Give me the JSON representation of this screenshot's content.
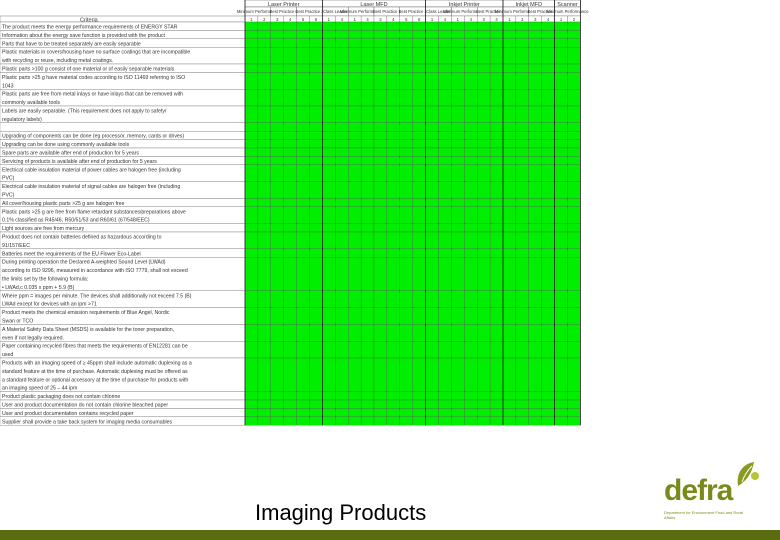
{
  "groups": [
    {
      "label": "Laser Printer",
      "cols": [
        {
          "name": "Minimum Performance",
          "nums": [
            "1",
            "2"
          ]
        },
        {
          "name": "Best Practice 1",
          "nums": [
            "3",
            "4"
          ]
        },
        {
          "name": "Best Practice 2",
          "nums": [
            "5",
            "6"
          ]
        }
      ]
    },
    {
      "label": "Laser MFD",
      "cols": [
        {
          "name": "Class Leader",
          "nums": [
            "1",
            "4"
          ]
        },
        {
          "name": "Minimum Performance",
          "nums": [
            "1",
            "4"
          ]
        },
        {
          "name": "Best Practice 1",
          "nums": [
            "3",
            "4"
          ]
        },
        {
          "name": "Best Practice 2",
          "nums": [
            "5",
            "6"
          ]
        }
      ]
    },
    {
      "label": "Inkjet Printer",
      "cols": [
        {
          "name": "Class Leader",
          "nums": [
            "1",
            "4"
          ]
        },
        {
          "name": "Minimum Performance",
          "nums": [
            "1",
            "4"
          ]
        },
        {
          "name": "Best Practice 1",
          "nums": [
            "3",
            "4"
          ]
        }
      ]
    },
    {
      "label": "Inkjet MFD",
      "cols": [
        {
          "name": "Minimum Performance",
          "nums": [
            "1",
            "2"
          ]
        },
        {
          "name": "Best Practice 1",
          "nums": [
            "3",
            "4"
          ]
        }
      ]
    },
    {
      "label": "Scanner",
      "cols": [
        {
          "name": "Minimum Performance",
          "nums": [
            "1",
            "2"
          ]
        }
      ]
    }
  ],
  "criteria_header": "Criteria",
  "criteria": [
    {
      "text": [
        "The product meets the energy performance requirements of ENERGY STAR"
      ],
      "p": "GGGGGGGGGGGGGGGGGGGGGGGGGGGGGGGGGGGGGGGGG"
    },
    {
      "text": [
        "Information about the energy save function is provided with the product"
      ],
      "p": "GGGGGGGGGGGGGGGGGGGGGGGGGGGGGGGGGGGGGGGGG"
    },
    {
      "text": [
        "Parts that have to be treated separately are easily separable"
      ],
      "p": "GGGGGGGGGGGGGGGGGGGGGGGGGGGGGGGGGGGGGGGGG"
    },
    {
      "text": [
        "Plastic materials in covers/housing have no surface coatings that are incompatible",
        "with recycling or reuse, including metal coatings."
      ],
      "p": "GGGGGGGGGGGGGGGGGGGGGGGGGGGGGGGGGGGGGGGGG"
    },
    {
      "text": [
        "Plastic parts >100 g consist of one material or of easily separable materials"
      ],
      "p": "GGGGGGGGGGGGGGGGGGGGGGGGGGGGGGGGGGGGGGGGG"
    },
    {
      "text": [
        "Plastic parts >25 g have material codes according to ISO 11469 referring to ISO",
        "1043"
      ],
      "p": "GGGGGGGGGGGGGGGGGGGGGGGGGGGGGGGGGGGGGGGGG"
    },
    {
      "text": [
        "Plastic parts are free from metal inlays or have inlays that can be removed with",
        "commonly available tools"
      ],
      "p": "GGGGGGGGGGGGGGGGGGGGGGGGGGGGGGGGGGGGGGGGG"
    },
    {
      "text": [
        "Labels are easily separable. (This requirement does not apply to safety/",
        "regulatory labels)"
      ],
      "p": "GGGGGGGGGGGGGGGGGGGGGGGGGGGGGGGGGGGGGGGGG"
    },
    {
      "text": [
        ""
      ],
      "p": "GGGGGGGGGGGGGGGGGGGGGGGGGGGGGGGGGGGGGGGGG"
    },
    {
      "text": [
        "Upgrading of components can be done (eg processor, memory, cards or drives)"
      ],
      "p": "GGGGGGGGGGGGGGGGGGGGGGGGGGGGGGGGGGGGGGGGG"
    },
    {
      "text": [
        "Upgrading can be done using commonly available tools"
      ],
      "p": "GGGGGGGGGGGGGGGGGGGGGGGGGGGGGGGGGGGGGGGGG"
    },
    {
      "text": [
        "Spare parts are available after end of production for 5 years"
      ],
      "p": "GGGGGGGGGGGGGGGGGGGGGGGGGGGGGGGGGGGGGGGGG"
    },
    {
      "text": [
        "Servicing of products is available after end of production for 5 years"
      ],
      "p": "GGGGGGGGGGGGGGGGGGGGGGGGGGGGGGGGGGGGGGGGG"
    },
    {
      "text": [
        "Electrical cable insulation material of power cables are halogen free (including",
        "PVC)"
      ],
      "p": "GGGGGGGGGGGGGGGGGGGGGGGGGGGGGGGGGGGGGGGGG"
    },
    {
      "text": [
        "Electrical cable insulation material of signal cables are halogen free (including",
        "PVC)"
      ],
      "p": "GGGGGGGGGGGGGGGGGGGGGGGGGGGGGGGGGGGGGGGGG"
    },
    {
      "text": [
        "All cover/housing plastic parts >25 g are halogen free"
      ],
      "p": "GGGGGGGGGGGGGGGGGGGGGGGGGGGGGGGGGGGGGGGGG"
    },
    {
      "text": [
        "Plastic parts >25 g are free from flame retardant substances/preparations above",
        "0.1% classified as R45/46, R50/51/53 and R60/61 (67/548/EEC)"
      ],
      "p": "GGGGGGGGGGGGGGGGGGGGGGGGGGGGGGGGGGGGGGGGG"
    },
    {
      "text": [
        "Light sources are free from mercury"
      ],
      "p": "GGGGGGGGGGGGGGGGGGGGGGGGGGGGGGGGGGGGGGGGG"
    },
    {
      "text": [
        "Product does not contain batteries defined as hazardous according to",
        "91/157/EEC"
      ],
      "p": "GGGGGGGGGGGGGGGGGGGGGGGGGGGGGGGGGGGGGGGGG"
    },
    {
      "text": [
        "Batteries meet the requirements of the EU Flower Eco-Label"
      ],
      "p": "GGGGGGGGGGGGGGGGGGGGGGGGGGGGGGGGGGGGGGGGG"
    },
    {
      "text": [
        "During printing operation the Declared A-weighted Sound Level (LWAd)",
        "according to ISO 9296, measured in accordance with ISO 7779, shall not exceed",
        "the limits set by the following formula:",
        "• LWAd,c 0.035 x ppm + 5.9 (B)"
      ],
      "p": "GGGGGGGGGGGGGGGGGGGGGGGGGGGGGGGGGGGGGGGGG"
    },
    {
      "text": [
        "Where ppm = images per minute. The devices shall additionally not exceed 7.5 (B)",
        "LWAd except for devices with an ipm >71"
      ],
      "p": "GGGGGGGGGGGGGGGGGGGGGGGGGGGGGGGGGGGGGGGGG"
    },
    {
      "text": [
        "Product meets the chemical emission requirements of Blue Angel, Nordic",
        "Swan or TCO"
      ],
      "p": "GGGGGGGGGGGGGGGGGGGGGGGGGGGGGGGGGGGGGGGGG"
    },
    {
      "text": [
        "A Material Safety Data Sheet (MSDS) is available for the toner preparation,",
        "even if not legally required."
      ],
      "p": "GGGGGGGGGGGGGGGGGGGGGGGGGGGGGGGGGGGGGGGGG"
    },
    {
      "text": [
        "Paper containing recycled fibres that meets the requirements of EN12281 can be",
        "used"
      ],
      "p": "GGGGGGGGGGGGGGGGGGGGGGGGGGGGGGGGGGGGGGGGG"
    },
    {
      "text": [
        "Products with an imaging speed of ≥ 45ppm shall include automatic duplexing as a",
        "standard feature at the time of purchase. Automatic duplexing must be offered as",
        "a standard feature or optional accessory at the time of purchase for products with",
        "an imaging speed of 25 – 44 ipm"
      ],
      "p": "GGGGGGGGGGGGGGGGGGGGGGGGGGGGGGGGGGGGGGGGG"
    },
    {
      "text": [
        "Product plastic packaging does not contain chlorine"
      ],
      "p": "GGGGGGGGGGGGGGGGGGGGGGGGGGGGGGGGGGGGGGGGG"
    },
    {
      "text": [
        "User and product documentation do not contain chlorine bleached paper"
      ],
      "p": "GGGGGGGGGGGGGGGGGGGGGGGGGGGGGGGGGGGGGGGGG"
    },
    {
      "text": [
        "User and product documentation contains recycled paper"
      ],
      "p": "GGGGGGGGGGGGGGGGGGGGGGGGGGGGGGGGGGGGGGGGG"
    },
    {
      "text": [
        "Supplier shall provide a take back system for imaging media consumables"
      ],
      "p": "GGGGGGGGGGGGGGGGGGGGGGGGGGGGGGGGGGGGGGGGG"
    }
  ],
  "cell_colors": {
    "green": "#00ee00",
    "gray": "#bdbdbd",
    "white": "#ffffff",
    "header": "#ffffff"
  },
  "slide_title": "Imaging Products",
  "logo": {
    "word": "defra",
    "subtitle": "Department for Environment Food and Rural Affairs",
    "color": "#7a8a1a"
  },
  "footer_color": "#5a6b12"
}
